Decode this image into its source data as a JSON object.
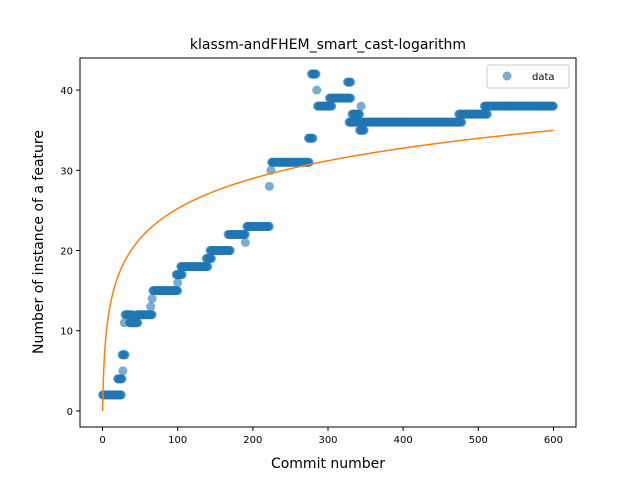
{
  "chart_data": {
    "type": "scatter",
    "title": "klassm-andFHEM_smart_cast-logarithm",
    "xlabel": "Commit number",
    "ylabel": "Number of instance of a feature",
    "xlim": [
      -30,
      630
    ],
    "ylim": [
      -2,
      44
    ],
    "xticks": [
      0,
      100,
      200,
      300,
      400,
      500,
      600
    ],
    "yticks": [
      0,
      10,
      20,
      30,
      40
    ],
    "grid": false,
    "legend_position": "top-right",
    "series": [
      {
        "name": "data",
        "kind": "points",
        "color": "#1f77b4",
        "segments": [
          {
            "x": [
              0,
              25
            ],
            "y": 2
          },
          {
            "x": [
              20,
              26
            ],
            "y": 4
          },
          {
            "x": [
              27,
              27
            ],
            "y": 5
          },
          {
            "x": [
              26,
              30
            ],
            "y": 7
          },
          {
            "x": [
              29,
              29
            ],
            "y": 11
          },
          {
            "x": [
              30,
              40
            ],
            "y": 12
          },
          {
            "x": [
              36,
              47
            ],
            "y": 11
          },
          {
            "x": [
              46,
              66
            ],
            "y": 12
          },
          {
            "x": [
              64,
              64
            ],
            "y": 13
          },
          {
            "x": [
              66,
              66
            ],
            "y": 14
          },
          {
            "x": [
              67,
              100
            ],
            "y": 15
          },
          {
            "x": [
              100,
              100
            ],
            "y": 16
          },
          {
            "x": [
              98,
              106
            ],
            "y": 17
          },
          {
            "x": [
              104,
              140
            ],
            "y": 18
          },
          {
            "x": [
              138,
              145
            ],
            "y": 19
          },
          {
            "x": [
              143,
              170
            ],
            "y": 20
          },
          {
            "x": [
              167,
              190
            ],
            "y": 22
          },
          {
            "x": [
              190,
              190
            ],
            "y": 21
          },
          {
            "x": [
              192,
              222
            ],
            "y": 23
          },
          {
            "x": [
              222,
              222
            ],
            "y": 28
          },
          {
            "x": [
              224,
              224
            ],
            "y": 30
          },
          {
            "x": [
              225,
              275
            ],
            "y": 31
          },
          {
            "x": [
              274,
              280
            ],
            "y": 34
          },
          {
            "x": [
              278,
              284
            ],
            "y": 42
          },
          {
            "x": [
              285,
              285
            ],
            "y": 40
          },
          {
            "x": [
              286,
              305
            ],
            "y": 38
          },
          {
            "x": [
              302,
              330
            ],
            "y": 39
          },
          {
            "x": [
              326,
              330
            ],
            "y": 41
          },
          {
            "x": [
              328,
              340
            ],
            "y": 36
          },
          {
            "x": [
              332,
              342
            ],
            "y": 37
          },
          {
            "x": [
              344,
              344
            ],
            "y": 38
          },
          {
            "x": [
              342,
              348
            ],
            "y": 35
          },
          {
            "x": [
              345,
              478
            ],
            "y": 36
          },
          {
            "x": [
              474,
              512
            ],
            "y": 37
          },
          {
            "x": [
              508,
              600
            ],
            "y": 38
          }
        ]
      },
      {
        "name": "",
        "kind": "line",
        "color": "#ff7f0e",
        "function": "a*ln(x+1)",
        "coefficient": 5.466,
        "x": [
          0,
          600
        ]
      }
    ],
    "legend": [
      "data"
    ]
  }
}
